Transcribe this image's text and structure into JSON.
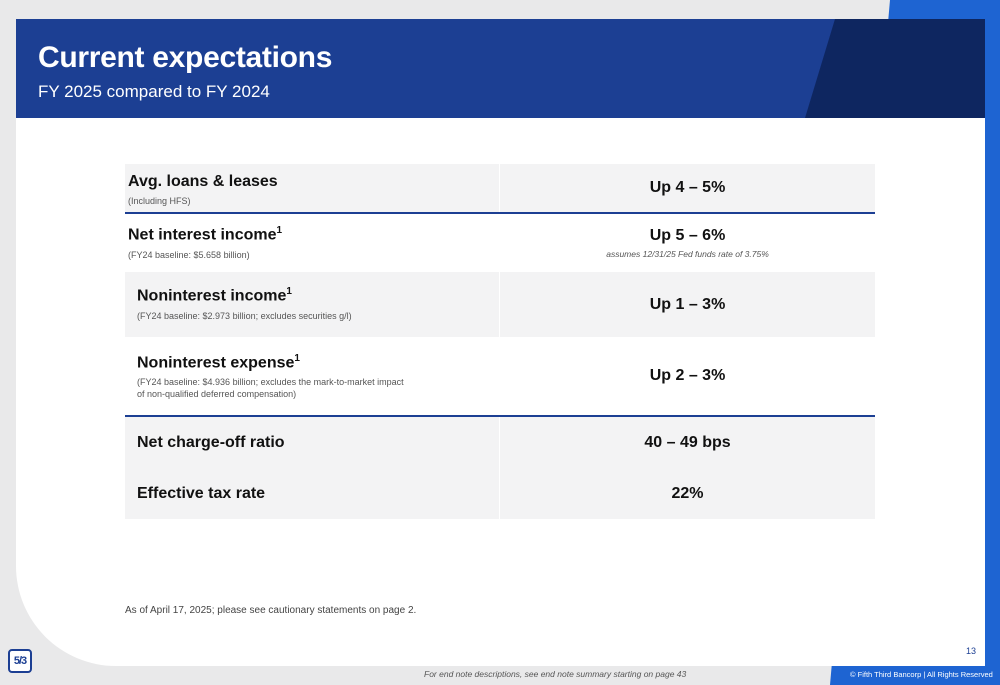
{
  "header": {
    "title": "Current expectations",
    "subtitle": "FY 2025 compared to FY 2024"
  },
  "rows": [
    {
      "label": "Avg. loans & leases",
      "sup": "",
      "note": "(Including HFS)",
      "value": "Up 4 – 5%",
      "value_note": ""
    },
    {
      "label": "Net interest income",
      "sup": "1",
      "note": "(FY24 baseline: $5.658 billion)",
      "value": "Up 5 – 6%",
      "value_note": "assumes 12/31/25 Fed funds rate of 3.75%"
    },
    {
      "label": "Noninterest income",
      "sup": "1",
      "note": "(FY24 baseline: $2.973 billion; excludes securities g/l)",
      "value": "Up 1 – 3%",
      "value_note": ""
    },
    {
      "label": "Noninterest expense",
      "sup": "1",
      "note_line1": "(FY24 baseline: $4.936 billion; excludes the mark-to-market impact",
      "note_line2": "of non-qualified deferred compensation)",
      "value": "Up 2 – 3%",
      "value_note": ""
    },
    {
      "label": "Net charge-off ratio",
      "value": "40 – 49 bps"
    },
    {
      "label": "Effective tax rate",
      "value": "22%"
    }
  ],
  "as_of": "As of April 17, 2025; please see cautionary statements on page 2.",
  "page_number": "13",
  "footer": {
    "end_note": "For end note descriptions, see end note summary starting on page 43",
    "copyright": "© Fifth Third Bancorp | All Rights Reserved"
  },
  "logo": {
    "icon": "fifth-third-logo-icon",
    "glyph": "5/3"
  },
  "colors": {
    "brand_blue": "#1c3f93",
    "dark_navy": "#0e2660",
    "accent_blue": "#1e64d2"
  }
}
